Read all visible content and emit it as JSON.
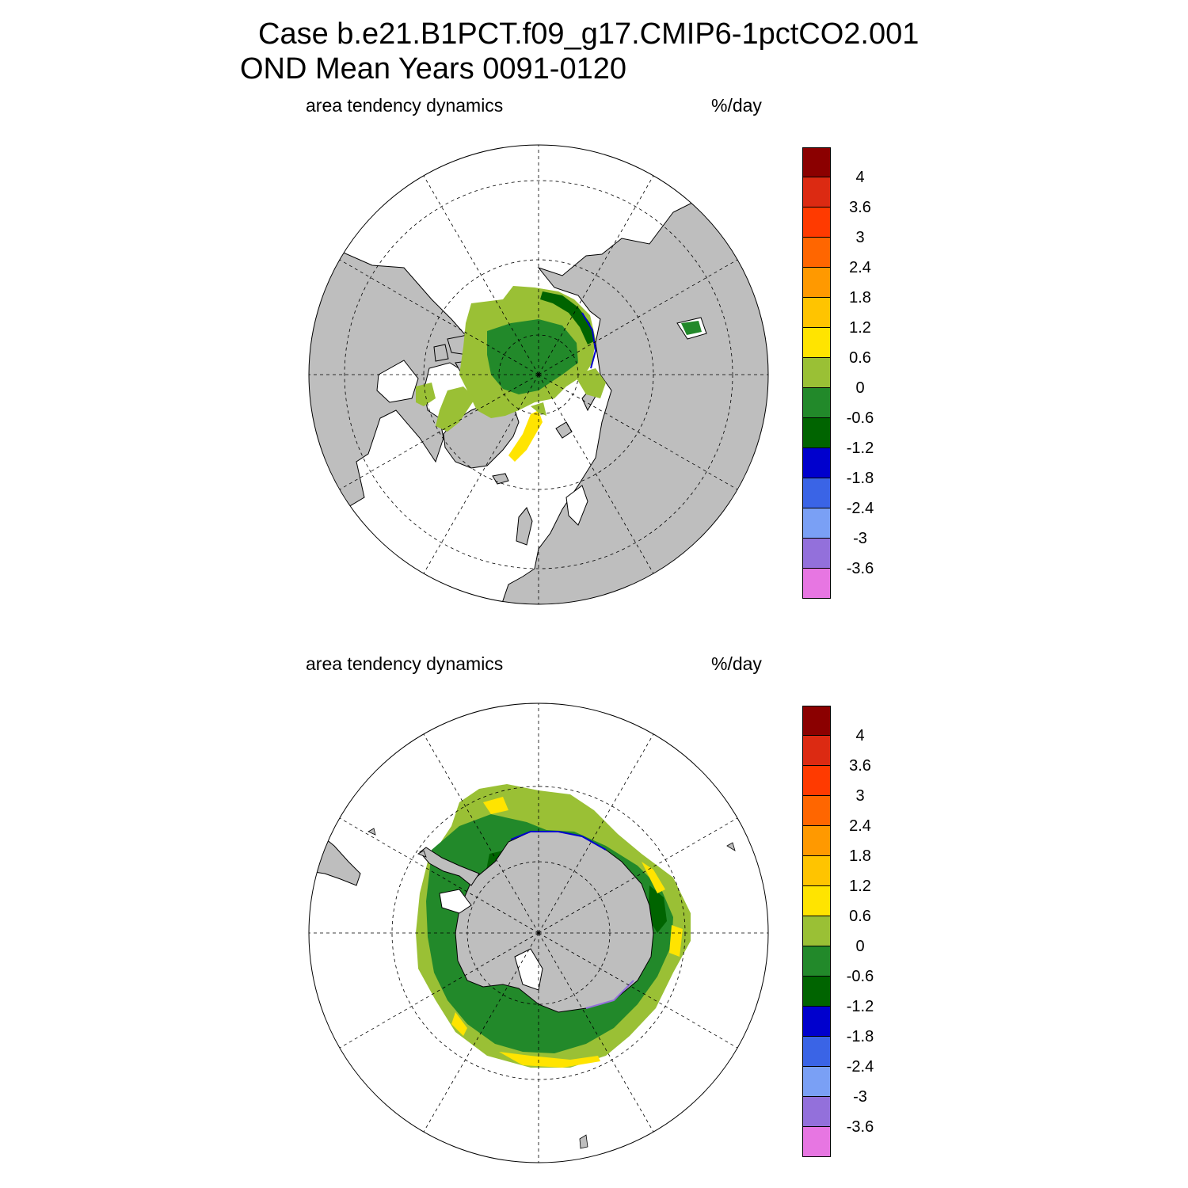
{
  "title": {
    "line1": "Case b.e21.B1PCT.f09_g17.CMIP6-1pctCO2.001",
    "line2": "OND Mean   Years 0091-0120"
  },
  "colors": {
    "land": "#bebebe",
    "background": "#ffffff",
    "grid_line": "#000000",
    "coast_line": "#000000"
  },
  "chart_data": [
    {
      "type": "heatmap",
      "projection": "polar stereographic",
      "hemisphere": "north",
      "left_label": "area tendency dynamics",
      "right_label": "%/day",
      "grid": true,
      "legend_placement": "right",
      "colorbar": {
        "tick_labels": [
          "4",
          "3.6",
          "3",
          "2.4",
          "1.8",
          "1.2",
          "0.6",
          "0",
          "-0.6",
          "-1.2",
          "-1.8",
          "-2.4",
          "-3",
          "-3.6"
        ],
        "colors": [
          "#8b0000",
          "#dc2a12",
          "#ff3a00",
          "#ff6600",
          "#ff9900",
          "#ffc400",
          "#ffe400",
          "#9ac035",
          "#22892a",
          "#006400",
          "#0000cd",
          "#3a64e6",
          "#7aa0f5",
          "#9370db",
          "#e776e2"
        ]
      }
    },
    {
      "type": "heatmap",
      "projection": "polar stereographic",
      "hemisphere": "south",
      "left_label": "area tendency dynamics",
      "right_label": "%/day",
      "grid": true,
      "legend_placement": "right",
      "colorbar": {
        "tick_labels": [
          "4",
          "3.6",
          "3",
          "2.4",
          "1.8",
          "1.2",
          "0.6",
          "0",
          "-0.6",
          "-1.2",
          "-1.8",
          "-2.4",
          "-3",
          "-3.6"
        ],
        "colors": [
          "#8b0000",
          "#dc2a12",
          "#ff3a00",
          "#ff6600",
          "#ff9900",
          "#ffc400",
          "#ffe400",
          "#9ac035",
          "#22892a",
          "#006400",
          "#0000cd",
          "#3a64e6",
          "#7aa0f5",
          "#9370db",
          "#e776e2"
        ]
      }
    }
  ]
}
